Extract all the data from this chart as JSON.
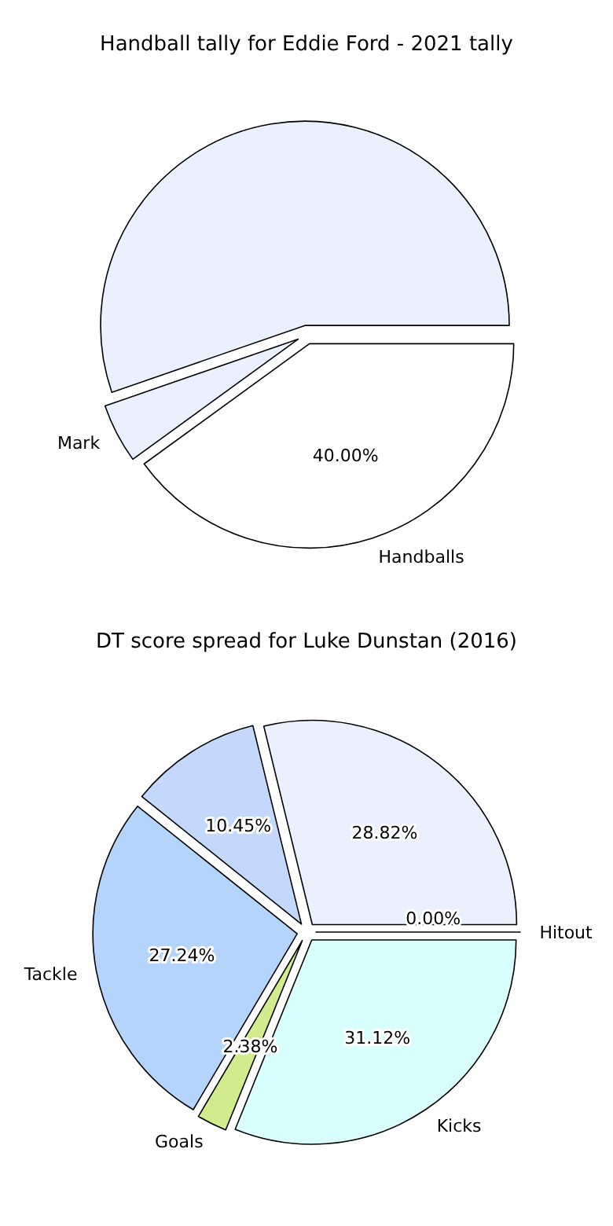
{
  "chart_data": [
    {
      "type": "pie",
      "title": "Handball tally for Eddie Ford - 2021 tally",
      "categories": [
        "Handballs",
        "Mark",
        null
      ],
      "values": [
        40,
        4.7,
        55.3
      ],
      "colors": [
        "#ffffff",
        "#eaf0fe",
        "#eaf0fe"
      ],
      "value_labels": [
        "40.00%",
        null,
        null
      ]
    },
    {
      "type": "pie",
      "title": "DT score spread for Luke Dunstan (2016)",
      "categories": [
        "Hitout",
        "Kicks",
        "Goals",
        "Tackle",
        null,
        null
      ],
      "values": [
        0,
        31.12,
        2.38,
        27.24,
        10.45,
        28.82
      ],
      "colors": [
        "#eaf0fe",
        "#d8fefe",
        "#d0ec8c",
        "#b4d4fc",
        "#c4d8fc",
        "#eaf0fe"
      ],
      "value_labels": [
        "0.00%",
        "31.12%",
        "2.38%",
        "27.24%",
        "10.45%",
        "28.82%"
      ]
    }
  ]
}
